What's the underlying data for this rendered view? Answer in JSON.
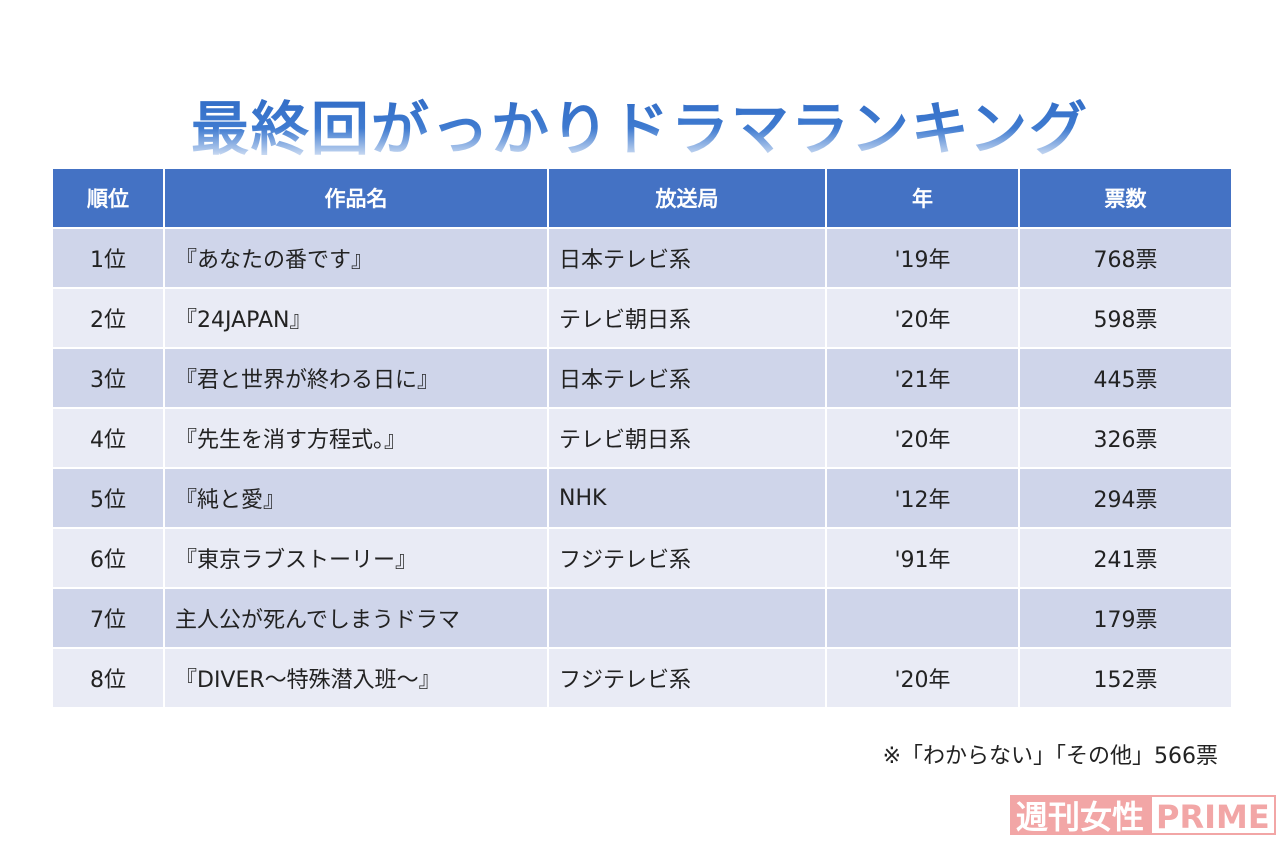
{
  "title": "最終回がっかりドラマランキング",
  "table": {
    "headers": [
      "順位",
      "作品名",
      "放送局",
      "年",
      "票数"
    ],
    "rows": [
      [
        "1位",
        "『あなたの番です』",
        "日本テレビ系",
        "'19年",
        "768票"
      ],
      [
        "2位",
        "『24JAPAN』",
        "テレビ朝日系",
        "'20年",
        "598票"
      ],
      [
        "3位",
        "『君と世界が終わる日に』",
        "日本テレビ系",
        "'21年",
        "445票"
      ],
      [
        "4位",
        "『先生を消す方程式。』",
        "テレビ朝日系",
        "'20年",
        "326票"
      ],
      [
        "5位",
        "『純と愛』",
        "NHK",
        "'12年",
        "294票"
      ],
      [
        "6位",
        "『東京ラブストーリー』",
        "フジテレビ系",
        "'91年",
        "241票"
      ],
      [
        "7位",
        "主人公が死んでしまうドラマ",
        null,
        null,
        "179票"
      ],
      [
        "8位",
        "『DIVER～特殊潜入班～』",
        "フジテレビ系",
        "'20年",
        "152票"
      ]
    ]
  },
  "note": "※「わからない」「その他」566票",
  "logo": {
    "brand": "週刊女性",
    "suffix": "PRIME"
  }
}
